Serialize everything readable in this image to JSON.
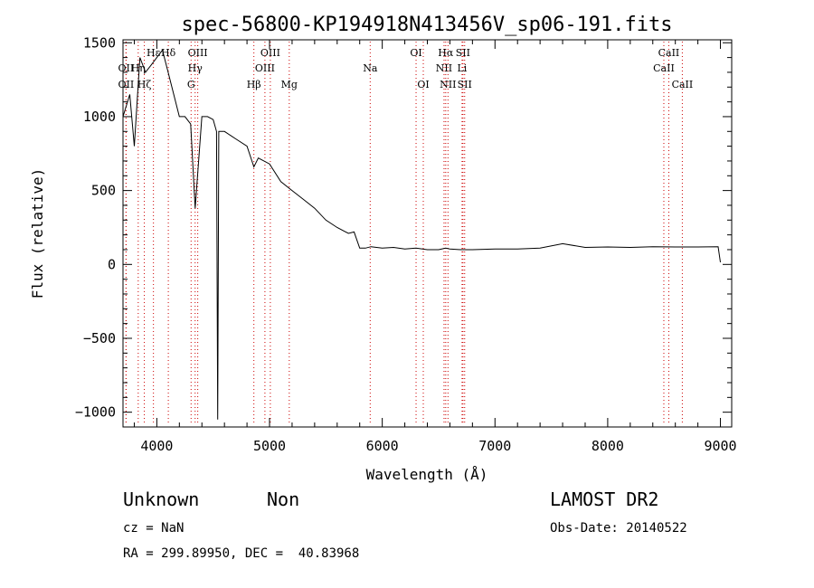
{
  "chart_data": {
    "type": "line",
    "title": "spec-56800-KP194918N413456V_sp06-191.fits",
    "xlabel": "Wavelength (Å)",
    "ylabel": "Flux (relative)",
    "xlim": [
      3700,
      9100
    ],
    "ylim": [
      -1100,
      1520
    ],
    "x_ticks": [
      4000,
      5000,
      6000,
      7000,
      8000,
      9000
    ],
    "y_ticks": [
      -1000,
      -500,
      0,
      500,
      1000,
      1500
    ],
    "grid": false,
    "series": [
      {
        "x": [
          3700,
          3760,
          3800,
          3850,
          3900,
          3950,
          4000,
          4050,
          4100,
          4150,
          4200,
          4250,
          4300,
          4340,
          4400,
          4450,
          4500,
          4530,
          4540,
          4550,
          4600,
          4700,
          4800,
          4861,
          4900,
          5000,
          5100,
          5200,
          5300,
          5400,
          5500,
          5600,
          5700,
          5750,
          5800,
          5850,
          5900,
          6000,
          6100,
          6200,
          6300,
          6400,
          6500,
          6563,
          6600,
          6700,
          6800,
          7000,
          7200,
          7400,
          7600,
          7800,
          8000,
          8200,
          8400,
          8600,
          8800,
          8980,
          9000
        ],
        "y": [
          1000,
          1150,
          800,
          1400,
          1300,
          1350,
          1400,
          1450,
          1300,
          1150,
          1000,
          1000,
          950,
          380,
          1000,
          1000,
          980,
          900,
          -1050,
          900,
          900,
          850,
          800,
          660,
          720,
          680,
          560,
          500,
          440,
          380,
          300,
          250,
          210,
          220,
          110,
          110,
          120,
          110,
          115,
          105,
          110,
          100,
          100,
          110,
          105,
          100,
          100,
          105,
          105,
          110,
          140,
          115,
          118,
          115,
          120,
          118,
          118,
          120,
          15
        ]
      }
    ],
    "emission_lines": [
      {
        "label": "Hε",
        "x": 3970,
        "row": 1
      },
      {
        "label": "Hδ",
        "x": 4102,
        "row": 1
      },
      {
        "label": "OII",
        "x": 3727,
        "row": 2
      },
      {
        "label": "Hη",
        "x": 3835,
        "row": 2
      },
      {
        "label": "OII",
        "x": 3727,
        "row": 3
      },
      {
        "label": "Hζ",
        "x": 3889,
        "row": 3
      },
      {
        "label": "OIII",
        "x": 4363,
        "row": 1
      },
      {
        "label": "Hγ",
        "x": 4340,
        "row": 2
      },
      {
        "label": "G",
        "x": 4304,
        "row": 3
      },
      {
        "label": "OIII",
        "x": 5007,
        "row": 1
      },
      {
        "label": "OIII",
        "x": 4959,
        "row": 2
      },
      {
        "label": "Hβ",
        "x": 4861,
        "row": 3
      },
      {
        "label": "Mg",
        "x": 5175,
        "row": 3
      },
      {
        "label": "Na",
        "x": 5893,
        "row": 2
      },
      {
        "label": "OI",
        "x": 6300,
        "row": 1
      },
      {
        "label": "OI",
        "x": 6364,
        "row": 3
      },
      {
        "label": "Hα",
        "x": 6563,
        "row": 1
      },
      {
        "label": "SII",
        "x": 6716,
        "row": 1
      },
      {
        "label": "NII",
        "x": 6548,
        "row": 2
      },
      {
        "label": "Li",
        "x": 6708,
        "row": 2
      },
      {
        "label": "NII",
        "x": 6583,
        "row": 3
      },
      {
        "label": "SII",
        "x": 6731,
        "row": 3
      },
      {
        "label": "CaII",
        "x": 8542,
        "row": 1
      },
      {
        "label": "CaII",
        "x": 8498,
        "row": 2
      },
      {
        "label": "CaII",
        "x": 8662,
        "row": 3
      }
    ],
    "line_color": "#000000",
    "marker_color": "#cc0000"
  },
  "info": {
    "class": "Unknown",
    "subclass": "Non",
    "cz": "cz = NaN",
    "radec": "RA = 299.89950, DEC =  40.83968",
    "survey": "LAMOST DR2",
    "obs_date": "Obs-Date: 20140522"
  }
}
